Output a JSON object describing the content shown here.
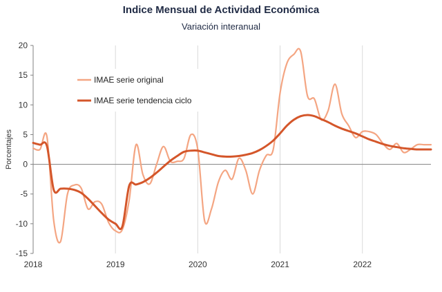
{
  "chart_data": {
    "type": "line",
    "title": "Indice Mensual de  Actividad Económica",
    "subtitle": "Variación interanual",
    "ylabel": "Porcentajes",
    "xlabel": "",
    "ylim": [
      -15,
      20
    ],
    "xlim": [
      2018,
      2022.833
    ],
    "yticks": [
      20,
      15,
      10,
      5,
      0,
      -5,
      -10,
      -15
    ],
    "xticks": [
      2018,
      2019,
      2020,
      2021,
      2022
    ],
    "grid": "vertical",
    "legend_position": "top-left",
    "series": [
      {
        "name": "IMAE serie original",
        "color": "#f4a582",
        "x": [
          2018.0,
          2018.083,
          2018.167,
          2018.25,
          2018.333,
          2018.417,
          2018.5,
          2018.583,
          2018.667,
          2018.75,
          2018.833,
          2018.917,
          2019.0,
          2019.083,
          2019.167,
          2019.25,
          2019.333,
          2019.417,
          2019.5,
          2019.583,
          2019.667,
          2019.75,
          2019.833,
          2019.917,
          2020.0,
          2020.083,
          2020.167,
          2020.25,
          2020.333,
          2020.417,
          2020.5,
          2020.583,
          2020.667,
          2020.75,
          2020.833,
          2020.917,
          2021.0,
          2021.083,
          2021.167,
          2021.25,
          2021.333,
          2021.417,
          2021.5,
          2021.583,
          2021.667,
          2021.75,
          2021.833,
          2021.917,
          2022.0,
          2022.083,
          2022.167,
          2022.25,
          2022.333,
          2022.417,
          2022.5,
          2022.583,
          2022.667,
          2022.75,
          2022.833
        ],
        "values": [
          2.7,
          2.5,
          4.7,
          -9.5,
          -13.0,
          -5.0,
          -3.5,
          -4.0,
          -7.5,
          -6.3,
          -6.7,
          -9.8,
          -11.2,
          -11.0,
          -6.0,
          3.3,
          -1.7,
          -3.3,
          0.0,
          3.0,
          0.5,
          0.5,
          1.0,
          5.0,
          2.5,
          -9.5,
          -7.5,
          -3.0,
          -1.0,
          -2.5,
          1.0,
          -1.0,
          -5.0,
          -1.0,
          1.5,
          2.5,
          12.0,
          17.0,
          18.5,
          19.0,
          11.5,
          11.0,
          7.5,
          9.0,
          13.5,
          8.5,
          6.5,
          4.5,
          5.5,
          5.5,
          5.0,
          3.5,
          2.5,
          3.5,
          2.0,
          2.5,
          3.3,
          3.3,
          3.3
        ]
      },
      {
        "name": "IMAE serie  tendencia ciclo",
        "color": "#d4562a",
        "x": [
          2018.0,
          2018.083,
          2018.167,
          2018.25,
          2018.333,
          2018.417,
          2018.5,
          2018.583,
          2018.667,
          2018.75,
          2018.833,
          2018.917,
          2019.0,
          2019.083,
          2019.167,
          2019.25,
          2019.333,
          2019.417,
          2019.5,
          2019.583,
          2019.667,
          2019.75,
          2019.833,
          2019.917,
          2020.0,
          2020.083,
          2020.167,
          2020.25,
          2020.333,
          2020.417,
          2020.5,
          2020.583,
          2020.667,
          2020.75,
          2020.833,
          2020.917,
          2021.0,
          2021.083,
          2021.167,
          2021.25,
          2021.333,
          2021.417,
          2021.5,
          2021.583,
          2021.667,
          2021.75,
          2021.833,
          2021.917,
          2022.0,
          2022.083,
          2022.167,
          2022.25,
          2022.333,
          2022.417,
          2022.5,
          2022.583,
          2022.667,
          2022.75,
          2022.833
        ],
        "values": [
          3.6,
          3.3,
          3.1,
          -4.3,
          -4.1,
          -4.1,
          -4.3,
          -4.8,
          -5.8,
          -7.0,
          -8.2,
          -9.3,
          -10.0,
          -10.5,
          -3.6,
          -3.4,
          -3.0,
          -2.3,
          -1.4,
          -0.4,
          0.6,
          1.4,
          2.1,
          2.3,
          2.3,
          2.0,
          1.7,
          1.4,
          1.3,
          1.3,
          1.4,
          1.6,
          1.9,
          2.4,
          3.1,
          4.0,
          5.2,
          6.5,
          7.5,
          8.1,
          8.3,
          8.1,
          7.6,
          7.1,
          6.5,
          6.0,
          5.6,
          5.2,
          4.7,
          4.2,
          3.8,
          3.4,
          3.1,
          2.9,
          2.7,
          2.6,
          2.5,
          2.5,
          2.5
        ]
      }
    ]
  }
}
